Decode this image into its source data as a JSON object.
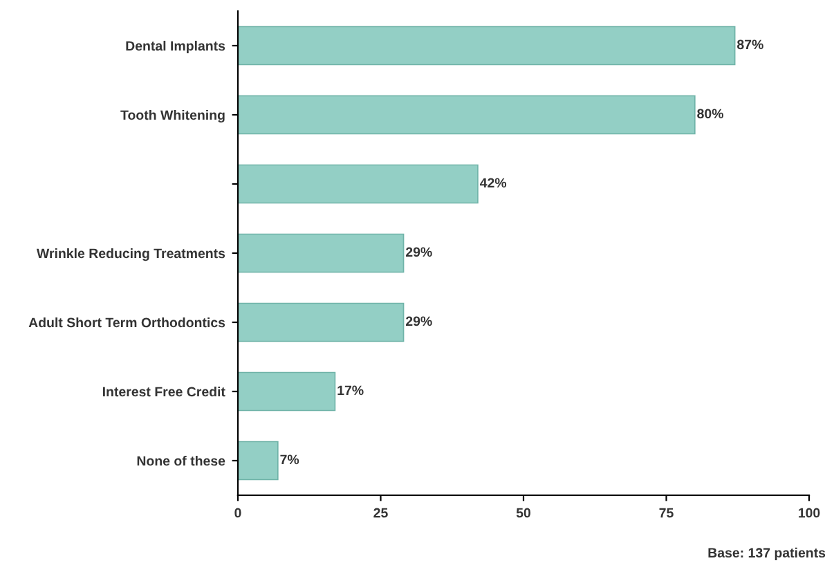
{
  "chart_data": {
    "type": "bar",
    "orientation": "horizontal",
    "categories": [
      "Dental Implants",
      "Tooth Whitening",
      null,
      "Wrinkle Reducing Treatments",
      "Adult Short Term Orthodontics",
      "Interest Free Credit",
      "None of these"
    ],
    "values": [
      87,
      80,
      42,
      29,
      29,
      17,
      7
    ],
    "color": "#93cfc5",
    "value_labels": [
      "87%",
      "80%",
      "42%",
      "29%",
      "29%",
      "17%",
      "7%"
    ],
    "xlim": [
      0,
      100
    ],
    "xticks": [
      0,
      25,
      50,
      75,
      100
    ],
    "grid": false,
    "annotations": [
      "Base: 137 patients"
    ]
  }
}
